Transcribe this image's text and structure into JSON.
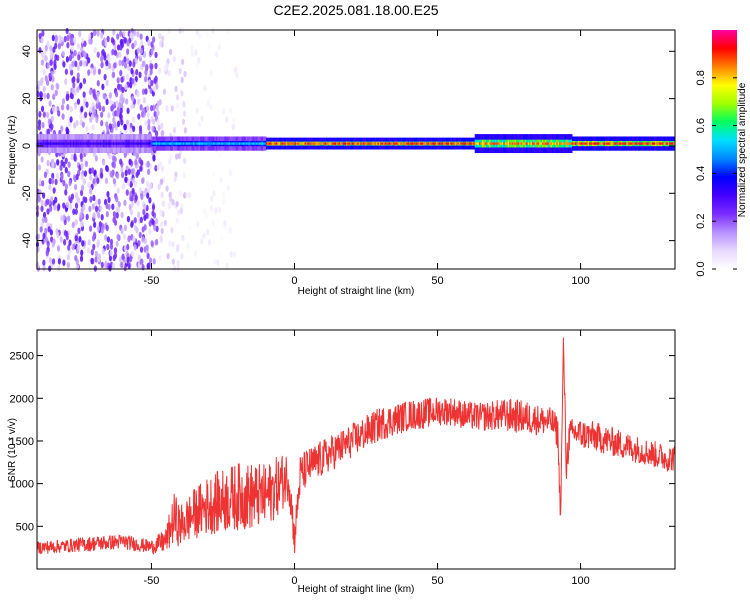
{
  "title": "C2E2.2025.081.18.00.E25",
  "colors": {
    "frame": "#000000",
    "snr_line": "#ee3333",
    "colormap": [
      "#ffffff",
      "#e8d8ff",
      "#b890ff",
      "#7a2cff",
      "#4400ff",
      "#0000ff",
      "#0088ff",
      "#00e0ff",
      "#00ff60",
      "#a0ff00",
      "#ffff00",
      "#ff8000",
      "#ff0000",
      "#ff00a0"
    ]
  },
  "chart_data": [
    {
      "type": "heatmap",
      "title": "C2E2.2025.081.18.00.E25",
      "xlabel": "Height of straight line (km)",
      "ylabel": "Frequency (Hz)",
      "xlim": [
        -90,
        133
      ],
      "ylim": [
        -52,
        49
      ],
      "xticks": [
        -50,
        0,
        50,
        100
      ],
      "yticks": [
        -40,
        -20,
        0,
        20,
        40
      ],
      "colorbar": {
        "label": "Normalized spectral amplitude",
        "range": [
          0.0,
          1.0
        ],
        "ticks": [
          0.0,
          0.2,
          0.4,
          0.6,
          0.8
        ]
      },
      "main_band": {
        "center_hz": 1,
        "segments": [
          {
            "x": [
              -90,
              -50
            ],
            "halfwidth_hz": 3,
            "peak_amplitude": 0.35
          },
          {
            "x": [
              -50,
              -10
            ],
            "halfwidth_hz": 2,
            "peak_amplitude": 0.55
          },
          {
            "x": [
              -10,
              63
            ],
            "halfwidth_hz": 1.5,
            "peak_amplitude": 0.95
          },
          {
            "x": [
              63,
              97
            ],
            "halfwidth_hz": 3,
            "peak_amplitude": 0.9
          },
          {
            "x": [
              97,
              133
            ],
            "halfwidth_hz": 2,
            "peak_amplitude": 0.95
          }
        ]
      },
      "noise_regions": [
        {
          "x": [
            -90,
            -48
          ],
          "amplitude": 0.3
        },
        {
          "x": [
            -48,
            -38
          ],
          "amplitude": 0.12
        },
        {
          "x": [
            -38,
            -20
          ],
          "amplitude": 0.05
        }
      ]
    },
    {
      "type": "line",
      "xlabel": "Height of straight line (km)",
      "ylabel": "SNR (10 * v/v)",
      "xlim": [
        -90,
        133
      ],
      "ylim": [
        0,
        2800
      ],
      "xticks": [
        -50,
        0,
        50,
        100
      ],
      "yticks": [
        500,
        1000,
        1500,
        2000,
        2500
      ],
      "series": [
        {
          "x": [
            -90,
            -80,
            -70,
            -60,
            -50,
            -45,
            -42,
            -40,
            -35,
            -30,
            -25,
            -20,
            -15,
            -10,
            -5,
            -2,
            0,
            2,
            5,
            10,
            15,
            20,
            25,
            30,
            35,
            40,
            45,
            50,
            55,
            60,
            65,
            70,
            75,
            80,
            85,
            90,
            92,
            93,
            94,
            95,
            96,
            98,
            100,
            105,
            110,
            115,
            120,
            125,
            130,
            133
          ],
          "values": [
            250,
            270,
            300,
            320,
            260,
            330,
            600,
            500,
            650,
            750,
            800,
            850,
            850,
            850,
            1000,
            1100,
            350,
            1100,
            1200,
            1300,
            1400,
            1500,
            1600,
            1700,
            1750,
            1800,
            1820,
            1850,
            1850,
            1800,
            1780,
            1800,
            1800,
            1780,
            1750,
            1720,
            1600,
            600,
            2700,
            1200,
            1550,
            1600,
            1580,
            1550,
            1500,
            1450,
            1400,
            1350,
            1300,
            1300
          ],
          "noise_amplitude": [
            80,
            80,
            90,
            90,
            80,
            150,
            300,
            250,
            300,
            350,
            380,
            400,
            400,
            380,
            350,
            300,
            200,
            250,
            220,
            220,
            210,
            200,
            200,
            200,
            190,
            180,
            180,
            170,
            170,
            170,
            170,
            180,
            200,
            200,
            180,
            170,
            200,
            100,
            100,
            250,
            200,
            180,
            180,
            180,
            170,
            170,
            160,
            160,
            160,
            160
          ]
        }
      ]
    }
  ]
}
